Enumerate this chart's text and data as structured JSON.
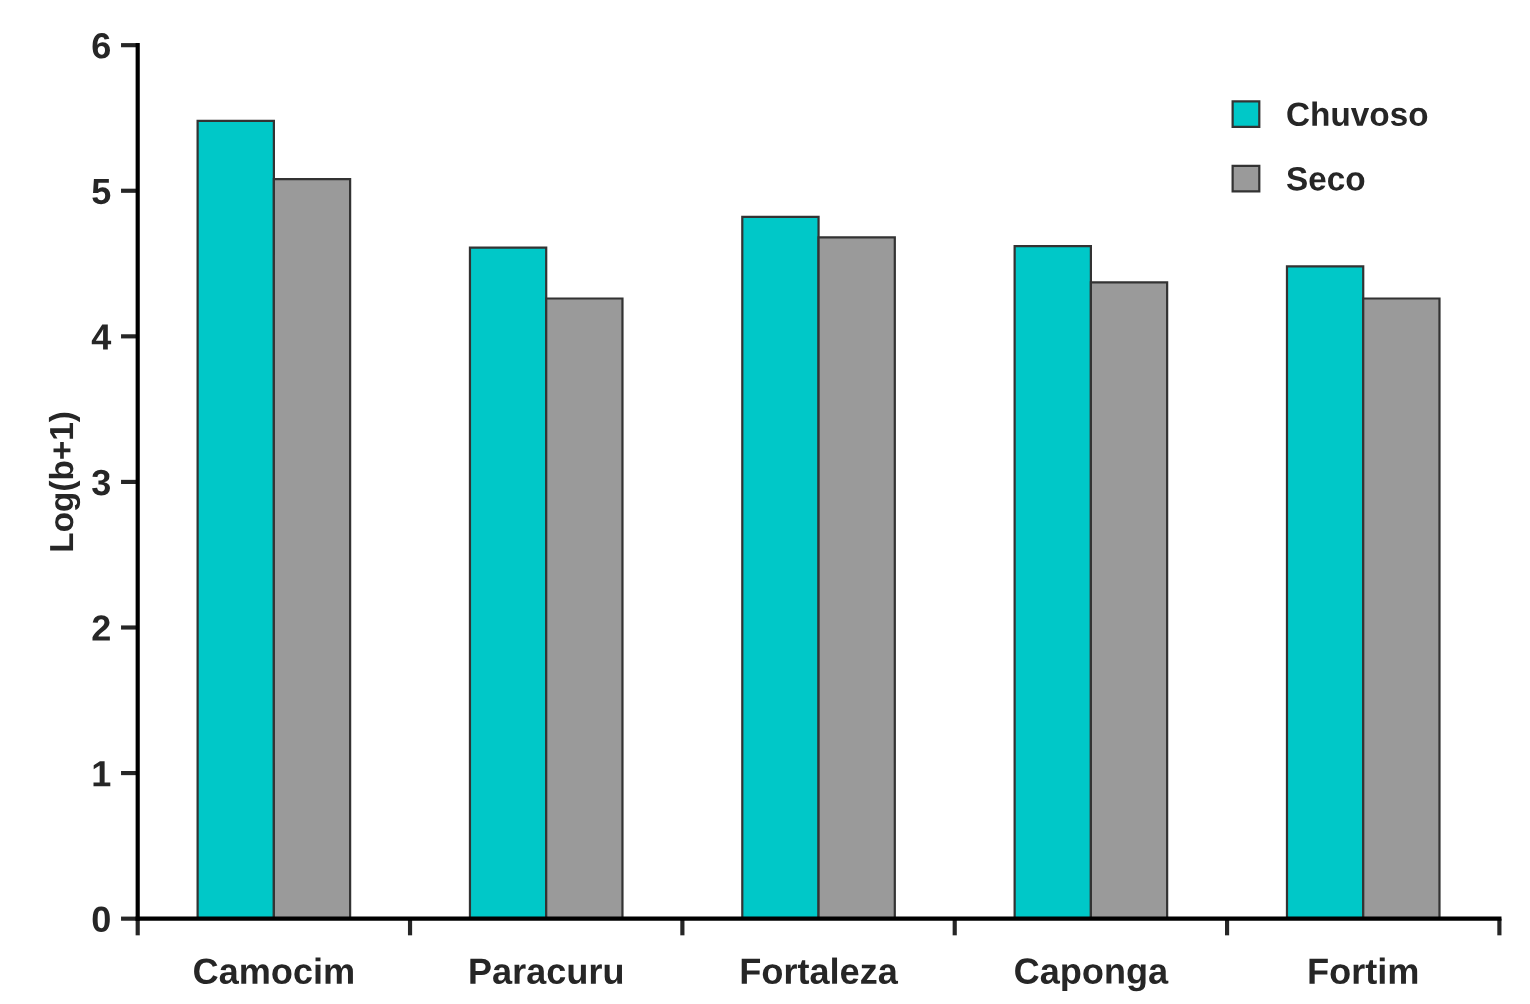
{
  "chart_data": {
    "type": "bar",
    "ylabel": "Log(b+1)",
    "categories": [
      "Camocim",
      "Paracuru",
      "Fortaleza",
      "Caponga",
      "Fortim"
    ],
    "series": [
      {
        "name": "Chuvoso",
        "color": "#00c8c8",
        "values": [
          5.48,
          4.61,
          4.82,
          4.62,
          4.48
        ]
      },
      {
        "name": "Seco",
        "color": "#9a9a9a",
        "values": [
          5.08,
          4.26,
          4.68,
          4.37,
          4.26
        ]
      }
    ],
    "ylim": [
      0,
      6
    ],
    "yticks": [
      0,
      1,
      2,
      3,
      4,
      5,
      6
    ],
    "grid": false,
    "legend": "top right"
  }
}
